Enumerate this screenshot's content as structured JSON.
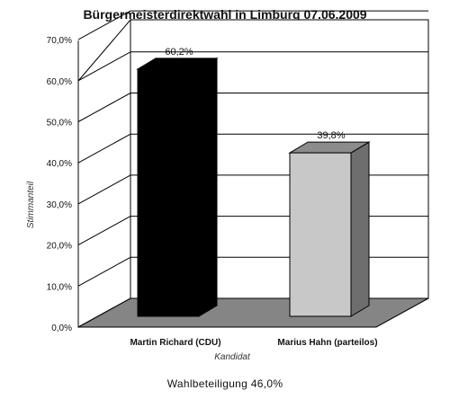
{
  "chart_data": {
    "type": "bar",
    "title": "Bürgermeisterdirektwahl in Limburg 07.06.2009",
    "xlabel": "Kandidat",
    "ylabel": "Stimmanteil",
    "categories": [
      "Martin Richard (CDU)",
      "Marius Hahn (parteilos)"
    ],
    "values": [
      60.2,
      39.8
    ],
    "data_labels": [
      "60,2%",
      "39,8%"
    ],
    "y_ticks": [
      "0,0%",
      "10,0%",
      "20,0%",
      "30,0%",
      "40,0%",
      "50,0%",
      "60,0%",
      "70,0%"
    ],
    "ylim": [
      0,
      70
    ],
    "grid": true,
    "legend": "none",
    "style": "3d",
    "colors": [
      "#000000",
      "#c8c8c8"
    ],
    "annotation": "Wahlbeteiligung 46,0%"
  }
}
